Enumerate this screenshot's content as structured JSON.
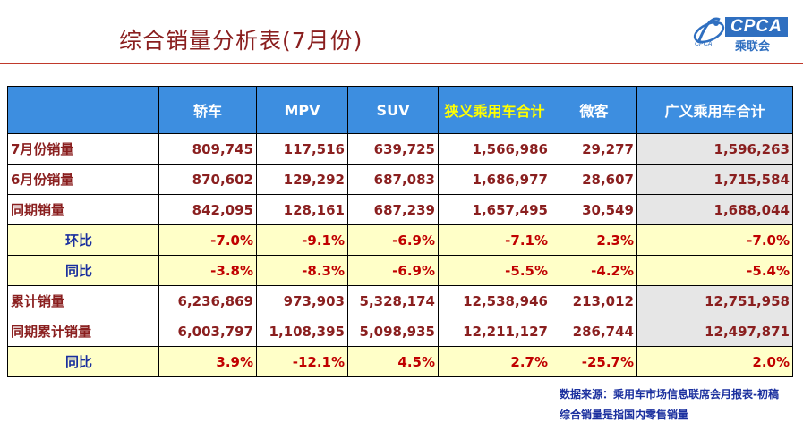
{
  "title": "综合销量分析表(7月份)",
  "logo": {
    "brand": "CPCA",
    "cn": "乘联会",
    "mini": "CPCA"
  },
  "table": {
    "headers": [
      "",
      "轿车",
      "MPV",
      "SUV",
      "狭义乘用车合计",
      "微客",
      "广义乘用车合计"
    ],
    "rows": [
      {
        "label": "7月份销量",
        "values": [
          "809,745",
          "117,516",
          "639,725",
          "1,566,986",
          "29,277",
          "1,596,263"
        ]
      },
      {
        "label": "6月份销量",
        "values": [
          "870,602",
          "129,292",
          "687,083",
          "1,686,977",
          "28,607",
          "1,715,584"
        ]
      },
      {
        "label": "同期销量",
        "values": [
          "842,095",
          "128,161",
          "687,239",
          "1,657,495",
          "30,549",
          "1,688,044"
        ]
      },
      {
        "label": "环比",
        "values": [
          "-7.0%",
          "-9.1%",
          "-6.9%",
          "-7.1%",
          "2.3%",
          "-7.0%"
        ]
      },
      {
        "label": "同比",
        "values": [
          "-3.8%",
          "-8.3%",
          "-6.9%",
          "-5.5%",
          "-4.2%",
          "-5.4%"
        ]
      },
      {
        "label": "累计销量",
        "values": [
          "6,236,869",
          "973,903",
          "5,328,174",
          "12,538,946",
          "213,012",
          "12,751,958"
        ]
      },
      {
        "label": "同期累计销量",
        "values": [
          "6,003,797",
          "1,108,395",
          "5,098,935",
          "12,211,127",
          "286,744",
          "12,497,871"
        ]
      },
      {
        "label": "同比",
        "values": [
          "3.9%",
          "-12.1%",
          "4.5%",
          "2.7%",
          "-25.7%",
          "2.0%"
        ]
      }
    ]
  },
  "footnotes": [
    "数据来源：乘用车市场信息联席会月报表-初稿",
    "综合销量是指国内零售销量"
  ]
}
